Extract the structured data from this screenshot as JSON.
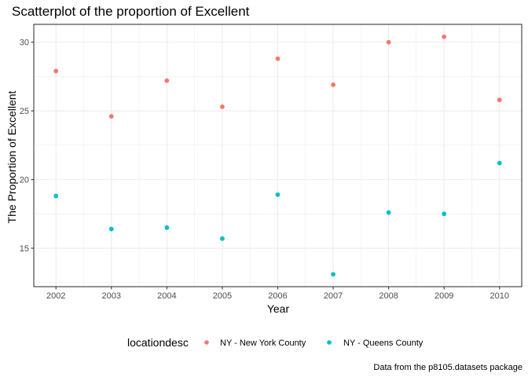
{
  "chart_data": {
    "type": "scatter",
    "title": "Scatterplot of the proportion of Excellent",
    "xlabel": "Year",
    "ylabel": "The Proportion of Excellent",
    "caption": "Data from the p8105.datasets package",
    "x_ticks": [
      2002,
      2003,
      2004,
      2005,
      2006,
      2007,
      2008,
      2009,
      2010
    ],
    "y_ticks": [
      15,
      20,
      25,
      30
    ],
    "xlim": [
      2001.6,
      2010.4
    ],
    "ylim": [
      12.2,
      31.3
    ],
    "grid": true,
    "legend": {
      "title": "locationdesc",
      "position": "bottom"
    },
    "series": [
      {
        "name": "NY - New York County",
        "color": "#F8766D",
        "points": [
          {
            "x": 2002,
            "y": 27.9
          },
          {
            "x": 2003,
            "y": 24.6
          },
          {
            "x": 2004,
            "y": 27.2
          },
          {
            "x": 2005,
            "y": 25.3
          },
          {
            "x": 2006,
            "y": 28.8
          },
          {
            "x": 2007,
            "y": 26.9
          },
          {
            "x": 2008,
            "y": 30.0
          },
          {
            "x": 2009,
            "y": 30.4
          },
          {
            "x": 2010,
            "y": 25.8
          }
        ]
      },
      {
        "name": "NY - Queens County",
        "color": "#00BFC4",
        "points": [
          {
            "x": 2002,
            "y": 18.8
          },
          {
            "x": 2003,
            "y": 16.4
          },
          {
            "x": 2004,
            "y": 16.5
          },
          {
            "x": 2005,
            "y": 15.7
          },
          {
            "x": 2006,
            "y": 18.9
          },
          {
            "x": 2007,
            "y": 13.1
          },
          {
            "x": 2008,
            "y": 17.6
          },
          {
            "x": 2009,
            "y": 17.5
          },
          {
            "x": 2010,
            "y": 21.2
          }
        ]
      }
    ]
  }
}
